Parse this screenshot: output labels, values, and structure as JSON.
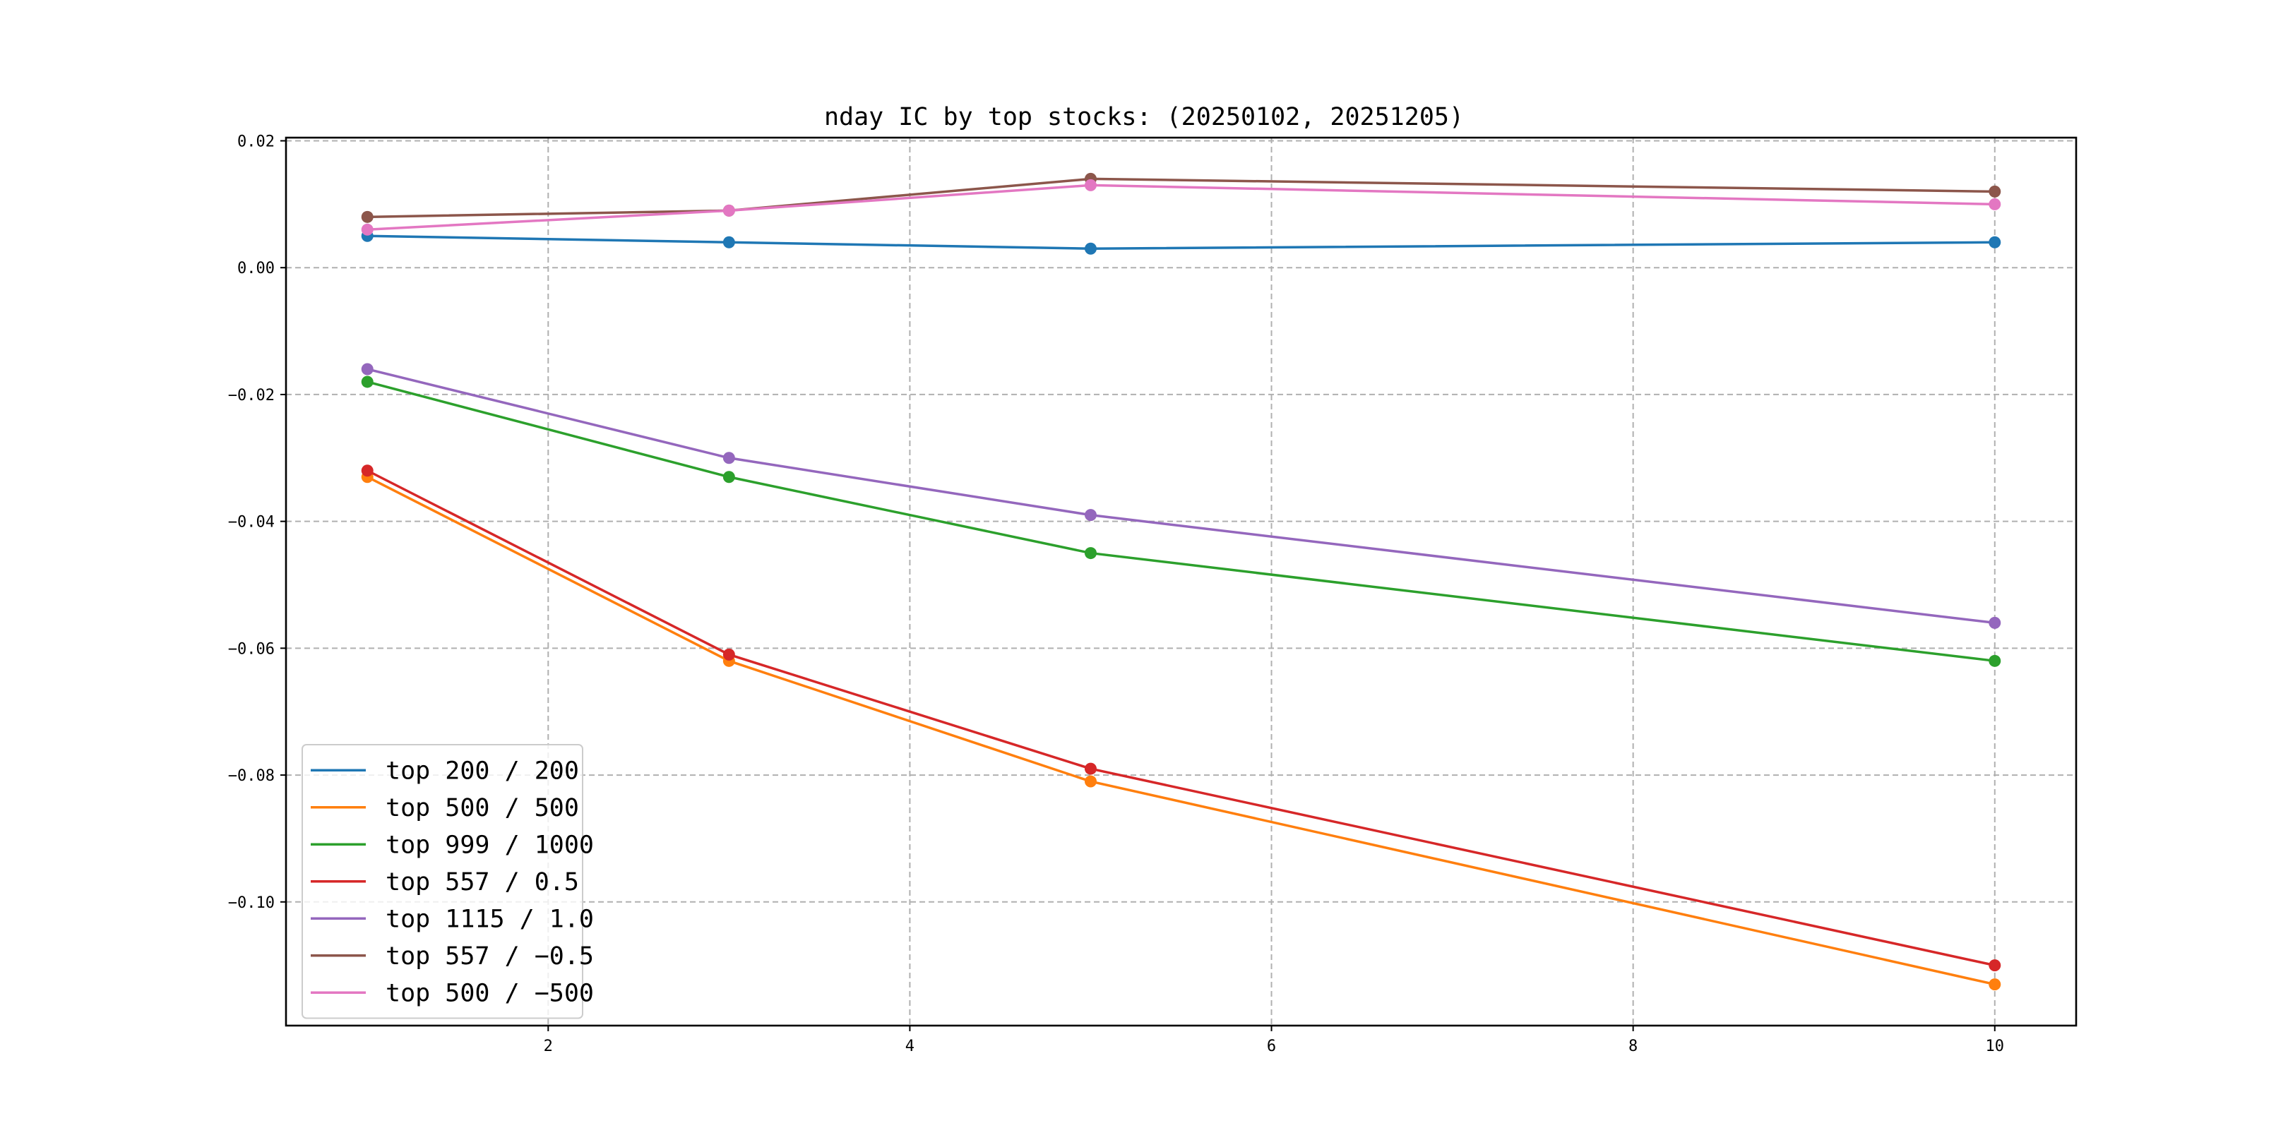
{
  "chart_data": {
    "type": "line",
    "title": "nday IC by top stocks: (20250102, 20251205)",
    "xlabel": "",
    "ylabel": "",
    "x": [
      1,
      3,
      5,
      10
    ],
    "xlim": [
      0.55,
      10.45
    ],
    "ylim": [
      -0.1195,
      0.0205
    ],
    "xticks": [
      2,
      4,
      6,
      8,
      10
    ],
    "xtick_labels": [
      "2",
      "4",
      "6",
      "8",
      "10"
    ],
    "yticks": [
      0.02,
      0.0,
      -0.02,
      -0.04,
      -0.06,
      -0.08,
      -0.1
    ],
    "ytick_labels": [
      "0.02",
      "0.00",
      "−0.02",
      "−0.04",
      "−0.06",
      "−0.08",
      "−0.10"
    ],
    "grid": true,
    "legend_position": "lower-left",
    "markers": "circle",
    "series": [
      {
        "name": "top 200 / 200",
        "color": "#1f77b4",
        "values": [
          0.005,
          0.004,
          0.003,
          0.004
        ]
      },
      {
        "name": "top 500 / 500",
        "color": "#ff7f0e",
        "values": [
          -0.033,
          -0.062,
          -0.081,
          -0.113
        ]
      },
      {
        "name": "top 999 / 1000",
        "color": "#2ca02c",
        "values": [
          -0.018,
          -0.033,
          -0.045,
          -0.062
        ]
      },
      {
        "name": "top 557 / 0.5",
        "color": "#d62728",
        "values": [
          -0.032,
          -0.061,
          -0.079,
          -0.11
        ]
      },
      {
        "name": "top 1115 / 1.0",
        "color": "#9467bd",
        "values": [
          -0.016,
          -0.03,
          -0.039,
          -0.056
        ]
      },
      {
        "name": "top 557 / −0.5",
        "color": "#8c564b",
        "values": [
          0.008,
          0.009,
          0.014,
          0.012
        ]
      },
      {
        "name": "top 500 / −500",
        "color": "#e377c2",
        "values": [
          0.006,
          0.009,
          0.013,
          0.01
        ]
      }
    ]
  }
}
